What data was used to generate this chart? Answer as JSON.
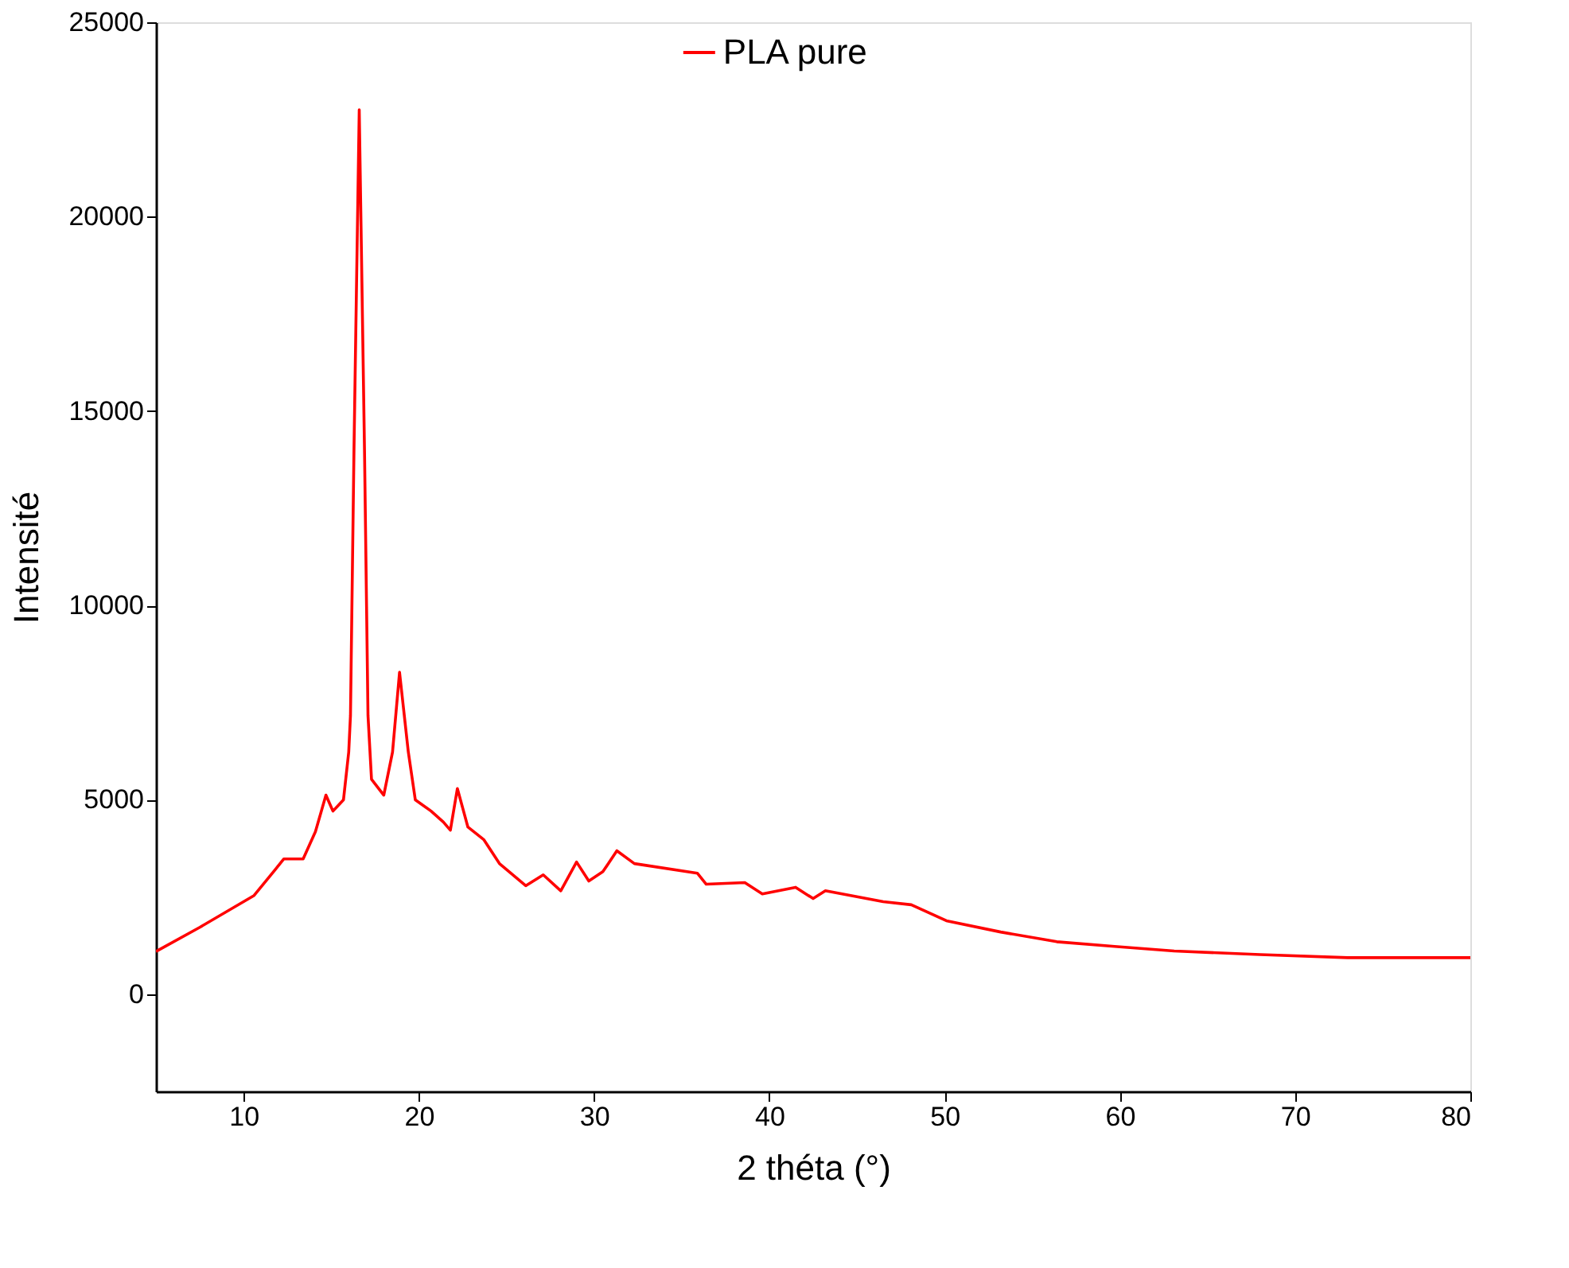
{
  "chart_data": {
    "type": "line",
    "xlabel": "2 théta (°)",
    "ylabel": "Intensité",
    "xlim": [
      5,
      80
    ],
    "xticks": [
      10,
      20,
      30,
      40,
      50,
      60,
      70,
      80
    ],
    "ylim": [
      -2500,
      25000
    ],
    "yticks": [
      0,
      5000,
      10000,
      15000,
      20000,
      25000
    ],
    "grid": false,
    "legend": "top",
    "line_style": "solid",
    "series": [
      {
        "name": "PLA pure",
        "color": "#ff0000",
        "x": [
          5,
          7.5,
          10.6,
          11.8,
          12.3,
          13.4,
          14.1,
          14.7,
          15.1,
          15.7,
          16.0,
          16.1,
          16.3,
          16.6,
          16.9,
          17.1,
          17.3,
          18.0,
          18.5,
          18.9,
          19.4,
          19.8,
          20.7,
          21.4,
          21.8,
          22.2,
          22.8,
          23.7,
          24.6,
          26.1,
          27.1,
          28.1,
          29.0,
          29.7,
          30.5,
          31.3,
          32.3,
          35.9,
          36.4,
          38.6,
          39.6,
          41.5,
          42.5,
          43.2,
          46.5,
          48.1,
          50.1,
          53.2,
          56.4,
          59.7,
          63.1,
          68.0,
          73.0,
          80
        ],
        "values": [
          1100,
          1720,
          2540,
          3200,
          3480,
          3480,
          4180,
          5120,
          4710,
          5000,
          6230,
          7170,
          14000,
          22750,
          14000,
          7170,
          5530,
          5120,
          6230,
          8280,
          6230,
          5000,
          4710,
          4430,
          4220,
          5290,
          4300,
          3980,
          3360,
          2790,
          3070,
          2660,
          3400,
          2910,
          3150,
          3690,
          3360,
          3110,
          2830,
          2870,
          2580,
          2750,
          2460,
          2660,
          2380,
          2300,
          1890,
          1600,
          1350,
          1230,
          1110,
          1020,
          940,
          940
        ]
      }
    ]
  }
}
